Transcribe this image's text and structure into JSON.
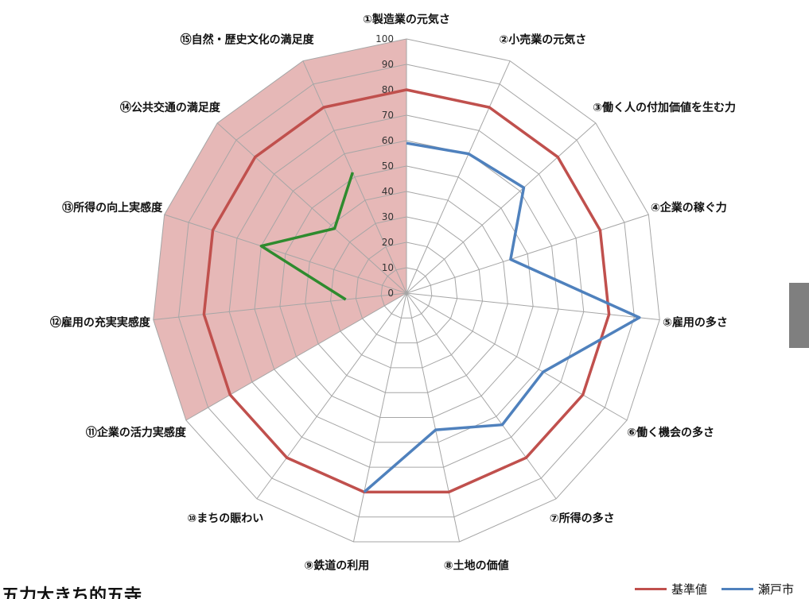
{
  "chart_data": {
    "type": "radar",
    "axes": [
      "①製造業の元気さ",
      "②小売業の元気さ",
      "③働く人の付加価値を生む力",
      "④企業の稼ぐ力",
      "⑤雇用の多さ",
      "⑥働く機会の多さ",
      "⑦所得の多さ",
      "⑧土地の価値",
      "⑨鉄道の利用",
      "⑩まちの賑わい",
      "⑪企業の活力実感度",
      "⑫雇用の充実実感度",
      "⑬所得の向上実感度",
      "⑭公共交通の満足度",
      "⑮自然・歴史文化の満足度"
    ],
    "rlim": [
      0,
      100
    ],
    "ticks": [
      0,
      10,
      20,
      30,
      40,
      50,
      60,
      70,
      80,
      90,
      100
    ],
    "shaded_axes_range": [
      10,
      14
    ],
    "shade_color": "#e6b8b7",
    "series": [
      {
        "name": "基準値",
        "color": "#c0504d",
        "values": [
          80,
          80,
          80,
          80,
          80,
          80,
          80,
          80,
          80,
          80,
          80,
          80,
          80,
          80,
          80
        ]
      },
      {
        "name": "瀬戸市",
        "color": "#4f81bd",
        "values": [
          59,
          60,
          62,
          43,
          92,
          62,
          64,
          55,
          80,
          null,
          null,
          null,
          null,
          null,
          null
        ]
      },
      {
        "name": "",
        "color": "#2e8b2e",
        "values": [
          null,
          null,
          null,
          null,
          null,
          null,
          null,
          null,
          null,
          null,
          null,
          24,
          60,
          38,
          52
        ]
      }
    ],
    "legend": "bottom-right"
  },
  "heading": "五力大きち的五寺"
}
